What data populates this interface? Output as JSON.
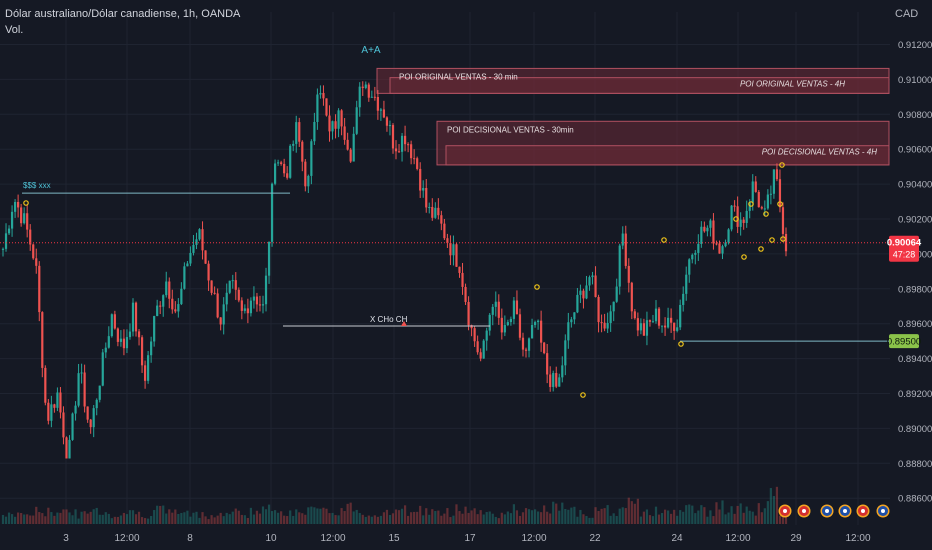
{
  "header": {
    "symbol_line": "Dólar australiano/Dólar canadiense, 1h, OANDA",
    "volume_label": "Vol."
  },
  "currency_label": "CAD",
  "colors": {
    "background": "#151924",
    "bull": "#26a69a",
    "bear": "#ef5350",
    "axis_text": "#b2b5be",
    "grid": "#1f2431",
    "zone_fill": "#6b2a36",
    "zone_border": "#b05060",
    "level_line": "#7fb8c4",
    "green_badge": "#8bc34a",
    "price_badge": "#f23645",
    "marker": "#f0c419"
  },
  "chart_data": {
    "type": "candlestick",
    "instrument": "AUDCAD",
    "ylim": [
      0.8852,
      0.9132
    ],
    "y_ticks": [
      0.886,
      0.888,
      0.89,
      0.892,
      0.894,
      0.896,
      0.898,
      0.9,
      0.902,
      0.904,
      0.906,
      0.908,
      0.91,
      0.912
    ],
    "y_tick_labels": [
      "0.88600",
      "0.88800",
      "0.89000",
      "0.89200",
      "0.89400",
      "0.89600",
      "0.89800",
      "0.90000",
      "0.90200",
      "0.90400",
      "0.90600",
      "0.90800",
      "0.91000",
      "0.91200"
    ],
    "x_tick_labels": [
      "3",
      "12:00",
      "8",
      "10",
      "12:00",
      "15",
      "17",
      "12:00",
      "22",
      "24",
      "12:00",
      "29",
      "12:00"
    ],
    "current_price": {
      "value": 0.90064,
      "label": "0.90064",
      "countdown": "47:28"
    },
    "level_badge": {
      "value": 0.895,
      "label": "0.89500"
    },
    "path": [
      0.9003,
      0.9032,
      0.9018,
      0.8995,
      0.8905,
      0.892,
      0.8882,
      0.8935,
      0.8898,
      0.8932,
      0.8965,
      0.8945,
      0.8968,
      0.8928,
      0.8965,
      0.8985,
      0.8965,
      0.8998,
      0.9012,
      0.8985,
      0.8962,
      0.8982,
      0.8965,
      0.8978,
      0.8968,
      0.9058,
      0.9045,
      0.9072,
      0.9036,
      0.9103,
      0.9068,
      0.908,
      0.9058,
      0.91,
      0.9092,
      0.9082,
      0.9062,
      0.9068,
      0.9052,
      0.9025,
      0.902,
      0.9006,
      0.8994,
      0.8958,
      0.8938,
      0.8975,
      0.8952,
      0.8968,
      0.894,
      0.8962,
      0.8932,
      0.8922,
      0.8958,
      0.8975,
      0.8988,
      0.8958,
      0.8968,
      0.9012,
      0.8962,
      0.8955,
      0.8965,
      0.8958,
      0.8962,
      0.8995,
      0.9012,
      0.9015,
      0.9002,
      0.9025,
      0.9018,
      0.904,
      0.902,
      0.9046,
      0.9005
    ],
    "volumes": [
      8,
      10,
      9,
      12,
      11,
      14,
      10,
      9,
      13,
      11,
      8,
      12,
      10,
      9,
      14,
      12,
      11,
      9,
      10,
      8,
      9,
      11,
      10,
      12,
      13,
      15,
      12,
      10,
      14,
      11,
      13,
      12,
      16,
      10,
      9,
      12,
      11,
      13,
      14,
      12,
      10,
      11,
      15,
      13,
      12,
      10,
      9,
      14,
      11,
      12,
      13,
      16,
      11,
      12,
      10,
      14,
      13,
      12,
      18,
      11,
      12,
      13,
      10,
      15,
      14,
      12,
      16,
      13,
      14,
      12,
      15,
      30,
      12
    ],
    "zones": [
      {
        "label": "POI  ORIGINAL VENTAS - 30 min",
        "top": 0.91063,
        "bottom": 0.9092
      },
      {
        "label": "POI  ORIGINAL VENTAS - 4H",
        "top": 0.9101,
        "bottom": 0.9092
      },
      {
        "label": "POI  DECISIONAL VENTAS - 30min",
        "top": 0.9076,
        "bottom": 0.9051
      },
      {
        "label": "POI  DECISIONAL VENTAS - 4H",
        "top": 0.9062,
        "bottom": 0.9051
      }
    ],
    "annotations": {
      "liquidity": {
        "label": "$$$ xxx",
        "value": 0.90348
      },
      "choch": {
        "label": "X CHo CH",
        "value": 0.89587
      },
      "top_label": "A+A"
    }
  }
}
